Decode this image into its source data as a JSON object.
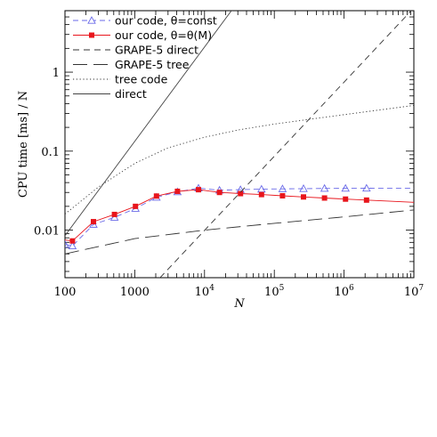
{
  "chart_data": {
    "type": "line",
    "xlabel": "N",
    "ylabel": "CPU time [ms] / N",
    "xscale": "log",
    "yscale": "log",
    "xlim": [
      100,
      10000000
    ],
    "ylim": [
      0.0025,
      6
    ],
    "x_tick_labels": [
      "100",
      "1000",
      "10",
      "10",
      "10",
      "10"
    ],
    "x_tick_label_values": [
      100,
      1000,
      10000,
      100000,
      1000000,
      10000000
    ],
    "x_tick_label_exponents": [
      "",
      "",
      "4",
      "5",
      "6",
      "7"
    ],
    "y_tick_labels": [
      "0.01",
      "0.1",
      "1"
    ],
    "y_tick_label_values": [
      0.01,
      0.1,
      1
    ],
    "grid": false,
    "legend_position": "top-left",
    "series": [
      {
        "name": "our code, θ=const",
        "style": "dashed",
        "marker": "triangle-open",
        "color": "#6a6ae8",
        "x": [
          100,
          128,
          256,
          512,
          1024,
          2048,
          4096,
          8192,
          16384,
          32768,
          65536,
          131072,
          262144,
          524288,
          1048576,
          2097152,
          10000000
        ],
        "y": [
          0.0066,
          0.0063,
          0.0118,
          0.0145,
          0.0188,
          0.026,
          0.0305,
          0.034,
          0.032,
          0.0325,
          0.033,
          0.0333,
          0.0335,
          0.0337,
          0.0338,
          0.0339,
          0.034
        ],
        "marker_x": [
          100,
          128,
          256,
          512,
          1024,
          2048,
          4096,
          8192,
          16384,
          32768,
          65536,
          131072,
          262144,
          524288,
          1048576,
          2097152
        ],
        "marker_y": [
          0.0066,
          0.0063,
          0.0118,
          0.0145,
          0.0188,
          0.026,
          0.0305,
          0.034,
          0.032,
          0.0325,
          0.033,
          0.0333,
          0.0335,
          0.0337,
          0.0338,
          0.0339
        ]
      },
      {
        "name": "our code, θ=θ(M)",
        "style": "solid",
        "marker": "square-filled",
        "color": "#e8151c",
        "x": [
          100,
          128,
          256,
          512,
          1024,
          2048,
          4096,
          8192,
          16384,
          32768,
          65536,
          131072,
          262144,
          524288,
          1048576,
          2097152,
          10000000
        ],
        "y": [
          0.0075,
          0.0073,
          0.0128,
          0.0158,
          0.02,
          0.027,
          0.031,
          0.0325,
          0.03,
          0.029,
          0.0282,
          0.0272,
          0.0263,
          0.0255,
          0.0247,
          0.024,
          0.0225
        ],
        "marker_x": [
          128,
          256,
          512,
          1024,
          2048,
          4096,
          8192,
          16384,
          32768,
          65536,
          131072,
          262144,
          524288,
          1048576,
          2097152
        ],
        "marker_y": [
          0.0073,
          0.0128,
          0.0158,
          0.02,
          0.027,
          0.031,
          0.0325,
          0.03,
          0.029,
          0.0282,
          0.0272,
          0.0263,
          0.0255,
          0.0247,
          0.024
        ]
      },
      {
        "name": "GRAPE-5 direct",
        "style": "short-dashed",
        "color": "#333333",
        "x": [
          2300,
          10000000
        ],
        "y": [
          0.0025,
          6.5
        ]
      },
      {
        "name": "GRAPE-5 tree",
        "style": "long-dashed",
        "color": "#333333",
        "x": [
          100,
          1000,
          10000,
          100000,
          1000000,
          10000000
        ],
        "y": [
          0.005,
          0.0078,
          0.01,
          0.0122,
          0.0147,
          0.018
        ]
      },
      {
        "name": "tree code",
        "style": "dotted",
        "color": "#333333",
        "x": [
          100,
          300,
          1000,
          3000,
          10000,
          30000,
          100000,
          1000000,
          10000000
        ],
        "y": [
          0.016,
          0.035,
          0.07,
          0.11,
          0.15,
          0.185,
          0.22,
          0.29,
          0.38
        ]
      },
      {
        "name": "direct",
        "style": "solid",
        "color": "#444444",
        "x": [
          100,
          26000
        ],
        "y": [
          0.0085,
          6.5
        ]
      }
    ]
  }
}
